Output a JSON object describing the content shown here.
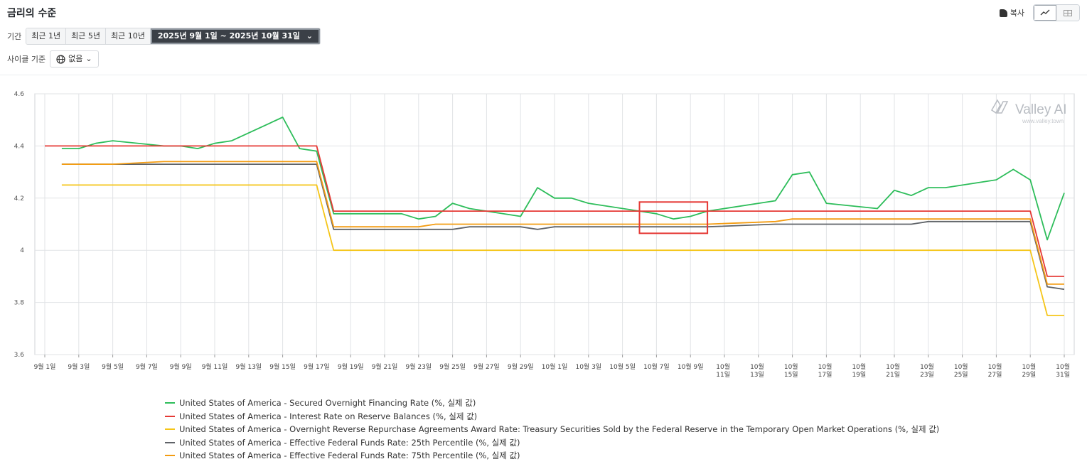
{
  "header": {
    "title": "금리의 수준",
    "copy_label": "복사"
  },
  "period": {
    "label": "기간",
    "buttons": [
      "최근 1년",
      "최근 5년",
      "최근 10년"
    ],
    "range_label": "2025년 9월 1일 ~ 2025년 10월 31일"
  },
  "cycle": {
    "label": "사이클 기준",
    "value": "없음"
  },
  "watermark": {
    "brand": "Valley AI",
    "url": "www.valley.town"
  },
  "chart_data": {
    "type": "line",
    "title": "",
    "xlabel": "",
    "ylabel": "",
    "ylim": [
      3.6,
      4.6
    ],
    "yticks": [
      "4.6",
      "4.4",
      "4.2",
      "4",
      "3.8",
      "3.6"
    ],
    "ytick_values": [
      4.6,
      4.4,
      4.2,
      4.0,
      3.8,
      3.6
    ],
    "grid": true,
    "legend_position": "bottom",
    "x_start": "2025-09-01",
    "x_end": "2025-10-31",
    "xtick_dates": [
      "2025-09-01",
      "2025-09-03",
      "2025-09-05",
      "2025-09-07",
      "2025-09-09",
      "2025-09-11",
      "2025-09-13",
      "2025-09-15",
      "2025-09-17",
      "2025-09-19",
      "2025-09-21",
      "2025-09-23",
      "2025-09-25",
      "2025-09-27",
      "2025-09-29",
      "2025-10-01",
      "2025-10-03",
      "2025-10-05",
      "2025-10-07",
      "2025-10-09",
      "2025-10-11",
      "2025-10-13",
      "2025-10-15",
      "2025-10-17",
      "2025-10-19",
      "2025-10-21",
      "2025-10-23",
      "2025-10-25",
      "2025-10-27",
      "2025-10-29",
      "2025-10-31"
    ],
    "xtick_labels": [
      [
        "9월 1일"
      ],
      [
        "9월 3일"
      ],
      [
        "9월 5일"
      ],
      [
        "9월 7일"
      ],
      [
        "9월 9일"
      ],
      [
        "9월 11일"
      ],
      [
        "9월 13일"
      ],
      [
        "9월 15일"
      ],
      [
        "9월 17일"
      ],
      [
        "9월 19일"
      ],
      [
        "9월 21일"
      ],
      [
        "9월 23일"
      ],
      [
        "9월 25일"
      ],
      [
        "9월 27일"
      ],
      [
        "9월 29일"
      ],
      [
        "10월 1일"
      ],
      [
        "10월 3일"
      ],
      [
        "10월 5일"
      ],
      [
        "10월 7일"
      ],
      [
        "10월 9일"
      ],
      [
        "10월",
        "11일"
      ],
      [
        "10월",
        "13일"
      ],
      [
        "10월",
        "15일"
      ],
      [
        "10월",
        "17일"
      ],
      [
        "10월",
        "19일"
      ],
      [
        "10월",
        "21일"
      ],
      [
        "10월",
        "23일"
      ],
      [
        "10월",
        "25일"
      ],
      [
        "10월",
        "27일"
      ],
      [
        "10월",
        "29일"
      ],
      [
        "10월",
        "31일"
      ]
    ],
    "highlight_box": {
      "x_from": "2025-10-06",
      "x_to": "2025-10-10",
      "y_from": 4.065,
      "y_to": 4.185,
      "color": "#e53935"
    },
    "series": [
      {
        "name": "United States of America - Secured Overnight Financing Rate (%, 실제 값)",
        "color": "#2dbd5a",
        "points": [
          [
            "2025-09-02",
            4.39
          ],
          [
            "2025-09-03",
            4.39
          ],
          [
            "2025-09-04",
            4.41
          ],
          [
            "2025-09-05",
            4.42
          ],
          [
            "2025-09-08",
            4.4
          ],
          [
            "2025-09-09",
            4.4
          ],
          [
            "2025-09-10",
            4.39
          ],
          [
            "2025-09-11",
            4.41
          ],
          [
            "2025-09-12",
            4.42
          ],
          [
            "2025-09-15",
            4.51
          ],
          [
            "2025-09-16",
            4.39
          ],
          [
            "2025-09-17",
            4.38
          ],
          [
            "2025-09-18",
            4.14
          ],
          [
            "2025-09-19",
            4.14
          ],
          [
            "2025-09-22",
            4.14
          ],
          [
            "2025-09-23",
            4.12
          ],
          [
            "2025-09-24",
            4.13
          ],
          [
            "2025-09-25",
            4.18
          ],
          [
            "2025-09-26",
            4.16
          ],
          [
            "2025-09-29",
            4.13
          ],
          [
            "2025-09-30",
            4.24
          ],
          [
            "2025-10-01",
            4.2
          ],
          [
            "2025-10-02",
            4.2
          ],
          [
            "2025-10-03",
            4.18
          ],
          [
            "2025-10-06",
            4.15
          ],
          [
            "2025-10-07",
            4.14
          ],
          [
            "2025-10-08",
            4.12
          ],
          [
            "2025-10-09",
            4.13
          ],
          [
            "2025-10-10",
            4.15
          ],
          [
            "2025-10-14",
            4.19
          ],
          [
            "2025-10-15",
            4.29
          ],
          [
            "2025-10-16",
            4.3
          ],
          [
            "2025-10-17",
            4.18
          ],
          [
            "2025-10-20",
            4.16
          ],
          [
            "2025-10-21",
            4.23
          ],
          [
            "2025-10-22",
            4.21
          ],
          [
            "2025-10-23",
            4.24
          ],
          [
            "2025-10-24",
            4.24
          ],
          [
            "2025-10-27",
            4.27
          ],
          [
            "2025-10-28",
            4.31
          ],
          [
            "2025-10-29",
            4.27
          ],
          [
            "2025-10-30",
            4.04
          ],
          [
            "2025-10-31",
            4.22
          ]
        ]
      },
      {
        "name": "United States of America - Interest Rate on Reserve Balances (%, 실제 값)",
        "color": "#e53935",
        "points": [
          [
            "2025-09-01",
            4.4
          ],
          [
            "2025-09-17",
            4.4
          ],
          [
            "2025-09-18",
            4.15
          ],
          [
            "2025-10-29",
            4.15
          ],
          [
            "2025-10-30",
            3.9
          ],
          [
            "2025-10-31",
            3.9
          ]
        ]
      },
      {
        "name": "United States of America - Overnight Reverse Repurchase Agreements Award Rate: Treasury Securities Sold by the Federal Reserve in the Temporary Open Market Operations (%, 실제 값)",
        "color": "#f5c518",
        "points": [
          [
            "2025-09-02",
            4.25
          ],
          [
            "2025-09-17",
            4.25
          ],
          [
            "2025-09-18",
            4.0
          ],
          [
            "2025-10-29",
            4.0
          ],
          [
            "2025-10-30",
            3.75
          ],
          [
            "2025-10-31",
            3.75
          ]
        ]
      },
      {
        "name": "United States of America - Effective Federal Funds Rate: 25th Percentile (%, 실제 값)",
        "color": "#5f6368",
        "points": [
          [
            "2025-09-02",
            4.33
          ],
          [
            "2025-09-17",
            4.33
          ],
          [
            "2025-09-18",
            4.08
          ],
          [
            "2025-09-25",
            4.08
          ],
          [
            "2025-09-26",
            4.09
          ],
          [
            "2025-09-29",
            4.09
          ],
          [
            "2025-09-30",
            4.08
          ],
          [
            "2025-10-01",
            4.09
          ],
          [
            "2025-10-10",
            4.09
          ],
          [
            "2025-10-14",
            4.1
          ],
          [
            "2025-10-22",
            4.1
          ],
          [
            "2025-10-23",
            4.11
          ],
          [
            "2025-10-29",
            4.11
          ],
          [
            "2025-10-30",
            3.86
          ],
          [
            "2025-10-31",
            3.85
          ]
        ]
      },
      {
        "name": "United States of America - Effective Federal Funds Rate: 75th Percentile (%, 실제 값)",
        "color": "#f39c12",
        "points": [
          [
            "2025-09-02",
            4.33
          ],
          [
            "2025-09-05",
            4.33
          ],
          [
            "2025-09-08",
            4.34
          ],
          [
            "2025-09-17",
            4.34
          ],
          [
            "2025-09-18",
            4.09
          ],
          [
            "2025-09-23",
            4.09
          ],
          [
            "2025-09-24",
            4.1
          ],
          [
            "2025-10-10",
            4.1
          ],
          [
            "2025-10-14",
            4.11
          ],
          [
            "2025-10-15",
            4.12
          ],
          [
            "2025-10-29",
            4.12
          ],
          [
            "2025-10-30",
            3.87
          ],
          [
            "2025-10-31",
            3.87
          ]
        ]
      }
    ]
  }
}
